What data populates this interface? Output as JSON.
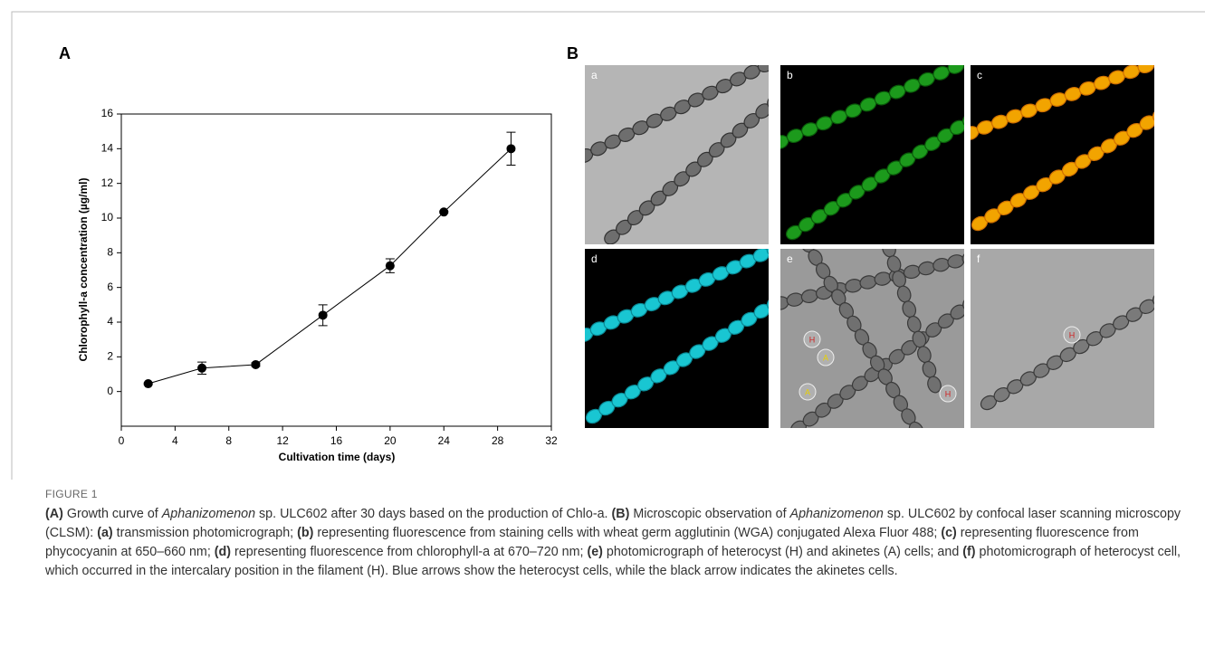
{
  "chart_data": {
    "type": "line",
    "panel_label": "A",
    "xlabel": "Cultivation time (days)",
    "ylabel": "Chlorophyll-a concentration (µg/ml)",
    "x": [
      2,
      6,
      10,
      15,
      20,
      24,
      29
    ],
    "values": [
      0.45,
      1.35,
      1.55,
      4.4,
      7.25,
      10.35,
      14.0
    ],
    "errors": [
      0.05,
      0.35,
      0.1,
      0.6,
      0.4,
      0.05,
      0.95
    ],
    "color": "#000000",
    "xlim": [
      0,
      32
    ],
    "xticks": [
      0,
      4,
      8,
      12,
      16,
      20,
      24,
      28,
      32
    ],
    "ylim": [
      -2,
      16
    ],
    "yticks": [
      0,
      2,
      4,
      6,
      8,
      10,
      12,
      14,
      16
    ],
    "grid": false
  },
  "figure": {
    "panel_label": "B",
    "panels": [
      {
        "label": "a",
        "markers": []
      },
      {
        "label": "b",
        "markers": []
      },
      {
        "label": "c",
        "markers": []
      },
      {
        "label": "d",
        "markers": []
      },
      {
        "label": "e",
        "markers": [
          "H",
          "A",
          "A",
          "H"
        ]
      },
      {
        "label": "f",
        "markers": [
          "H"
        ]
      }
    ],
    "figure_number": "FIGURE 1",
    "caption": [
      {
        "text": "(A)",
        "style": "bold"
      },
      {
        "text": " Growth curve of ",
        "style": "normal"
      },
      {
        "text": "Aphanizomenon",
        "style": "italic"
      },
      {
        "text": " sp. ULC602 after 30 days based on the production of Chlo-a. ",
        "style": "normal"
      },
      {
        "text": "(B)",
        "style": "bold"
      },
      {
        "text": " Microscopic observation of ",
        "style": "normal"
      },
      {
        "text": "Aphanizomenon",
        "style": "italic"
      },
      {
        "text": " sp. ULC602 by confocal laser scanning microscopy (CLSM): ",
        "style": "normal"
      },
      {
        "text": "(a)",
        "style": "bold"
      },
      {
        "text": " transmission photomicrograph; ",
        "style": "normal"
      },
      {
        "text": "(b)",
        "style": "bold"
      },
      {
        "text": " representing fluorescence from staining cells with wheat germ agglutinin (WGA) conjugated Alexa Fluor 488; ",
        "style": "normal"
      },
      {
        "text": "(c)",
        "style": "bold"
      },
      {
        "text": " representing fluorescence from phycocyanin at 650–660 nm; ",
        "style": "normal"
      },
      {
        "text": "(d)",
        "style": "bold"
      },
      {
        "text": " representing fluorescence from chlorophyll-a at 670–720 nm; ",
        "style": "normal"
      },
      {
        "text": "(e)",
        "style": "bold"
      },
      {
        "text": " photomicrograph of heterocyst (H) and akinetes (A) cells; and ",
        "style": "normal"
      },
      {
        "text": "(f)",
        "style": "bold"
      },
      {
        "text": " photomicrograph of heterocyst cell, which occurred in the intercalary position in the filament (H). Blue arrows show the heterocyst cells, while the black arrow indicates the akinetes cells.",
        "style": "normal"
      }
    ]
  }
}
